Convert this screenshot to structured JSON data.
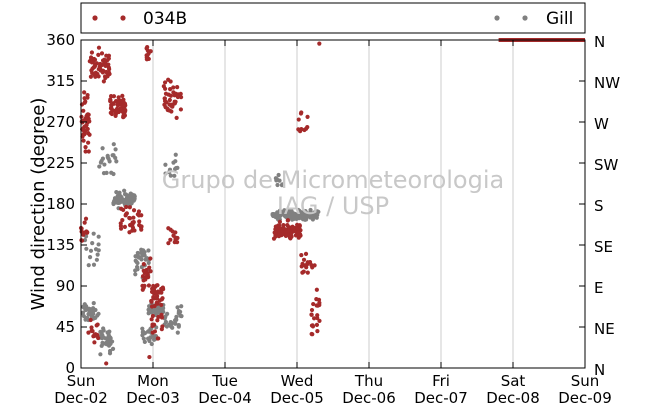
{
  "chart_data": {
    "type": "scatter",
    "title": "",
    "xlabel": "",
    "ylabel": "Wind direction (degree)",
    "ylim": [
      0,
      360
    ],
    "xlim": [
      "2012-12-02",
      "2012-12-09"
    ],
    "grid": true,
    "legend_placement": "top",
    "x_ticks": [
      {
        "day": "Sun",
        "date": "Dec-02"
      },
      {
        "day": "Mon",
        "date": "Dec-03"
      },
      {
        "day": "Tue",
        "date": "Dec-04"
      },
      {
        "day": "Wed",
        "date": "Dec-05"
      },
      {
        "day": "Thu",
        "date": "Dec-06"
      },
      {
        "day": "Fri",
        "date": "Dec-07"
      },
      {
        "day": "Sat",
        "date": "Dec-08"
      },
      {
        "day": "Sun",
        "date": "Dec-09"
      }
    ],
    "y_ticks_left": [
      "0",
      "45",
      "90",
      "135",
      "180",
      "225",
      "270",
      "315",
      "360"
    ],
    "y_ticks_right": [
      "N",
      "NE",
      "E",
      "SE",
      "S",
      "SW",
      "W",
      "NW",
      "N"
    ],
    "watermark": [
      "Grupo de Micrometeorologia",
      "IAG / USP"
    ],
    "series": [
      {
        "name": "034B",
        "color": "#a52a2a",
        "segments": [
          {
            "t0": 0.0,
            "t1": 0.12,
            "center": 270,
            "spread": 45,
            "count": 45
          },
          {
            "t0": 0.0,
            "t1": 0.1,
            "center": 150,
            "spread": 20,
            "count": 12
          },
          {
            "t0": 0.12,
            "t1": 0.4,
            "center": 330,
            "spread": 25,
            "count": 60
          },
          {
            "t0": 0.4,
            "t1": 0.62,
            "center": 285,
            "spread": 18,
            "count": 60
          },
          {
            "t0": 0.1,
            "t1": 0.25,
            "center": 40,
            "spread": 30,
            "count": 15
          },
          {
            "t0": 0.55,
            "t1": 0.85,
            "center": 160,
            "spread": 25,
            "count": 35
          },
          {
            "t0": 0.85,
            "t1": 0.97,
            "center": 100,
            "spread": 30,
            "count": 20
          },
          {
            "t0": 0.9,
            "t1": 0.97,
            "center": 345,
            "spread": 15,
            "count": 10
          },
          {
            "t0": 0.97,
            "t1": 1.15,
            "center": 80,
            "spread": 20,
            "count": 35
          },
          {
            "t0": 0.97,
            "t1": 1.15,
            "center": 45,
            "spread": 25,
            "count": 15
          },
          {
            "t0": 1.15,
            "t1": 1.4,
            "center": 295,
            "spread": 30,
            "count": 40
          },
          {
            "t0": 1.2,
            "t1": 1.35,
            "center": 145,
            "spread": 15,
            "count": 12
          },
          {
            "t0": 2.68,
            "t1": 3.05,
            "center": 150,
            "spread": 14,
            "count": 90
          },
          {
            "t0": 3.0,
            "t1": 3.15,
            "center": 270,
            "spread": 20,
            "count": 10
          },
          {
            "t0": 3.05,
            "t1": 3.25,
            "center": 115,
            "spread": 20,
            "count": 18
          },
          {
            "t0": 3.2,
            "t1": 3.32,
            "center": 60,
            "spread": 35,
            "count": 22
          }
        ],
        "points": [
          {
            "t": 3.31,
            "y": 356
          },
          {
            "t": 0.35,
            "y": 5
          },
          {
            "t": 0.95,
            "y": 12
          }
        ],
        "line": {
          "t0": 5.8,
          "t1": 7.0,
          "y": 360
        }
      },
      {
        "name": "Gill",
        "color": "#808080",
        "segments": [
          {
            "t0": 0.0,
            "t1": 0.25,
            "center": 60,
            "spread": 15,
            "count": 40
          },
          {
            "t0": 0.25,
            "t1": 0.45,
            "center": 30,
            "spread": 20,
            "count": 35
          },
          {
            "t0": 0.05,
            "t1": 0.25,
            "center": 130,
            "spread": 25,
            "count": 15
          },
          {
            "t0": 0.25,
            "t1": 0.5,
            "center": 230,
            "spread": 25,
            "count": 20
          },
          {
            "t0": 0.45,
            "t1": 0.75,
            "center": 185,
            "spread": 12,
            "count": 80
          },
          {
            "t0": 0.75,
            "t1": 0.95,
            "center": 120,
            "spread": 25,
            "count": 30
          },
          {
            "t0": 0.85,
            "t1": 1.05,
            "center": 35,
            "spread": 15,
            "count": 25
          },
          {
            "t0": 0.92,
            "t1": 1.15,
            "center": 65,
            "spread": 8,
            "count": 60
          },
          {
            "t0": 1.15,
            "t1": 1.4,
            "center": 55,
            "spread": 20,
            "count": 30
          },
          {
            "t0": 1.15,
            "t1": 1.35,
            "center": 220,
            "spread": 25,
            "count": 12
          },
          {
            "t0": 2.65,
            "t1": 3.3,
            "center": 168,
            "spread": 7,
            "count": 130
          },
          {
            "t0": 2.7,
            "t1": 2.8,
            "center": 205,
            "spread": 10,
            "count": 8
          }
        ],
        "points": [],
        "line": null
      }
    ]
  }
}
